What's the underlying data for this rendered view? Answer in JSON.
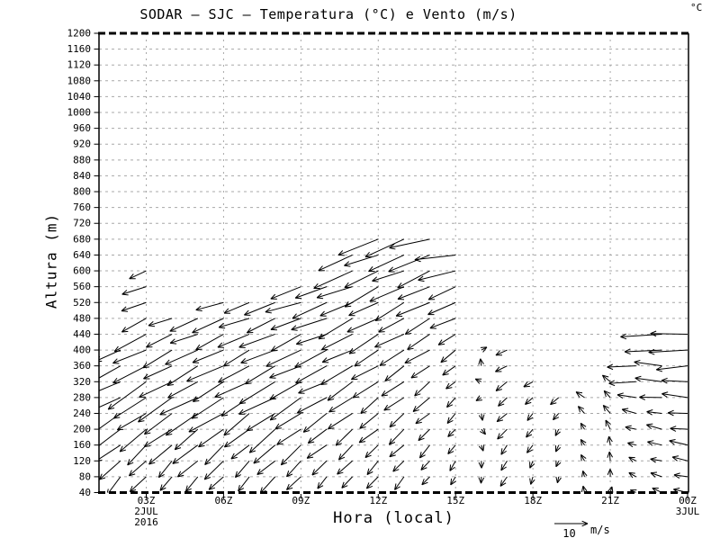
{
  "page": {
    "background": "#ffffff"
  },
  "chart_data": {
    "type": "vector",
    "description": "SODAR time-height wind vector profile plot; wind arrows drawn hourly at 40 m height intervals; no temperature shading visible",
    "title": "SODAR – SJC – Temperatura (°C) e Vento (m/s)",
    "unit_label": "°C",
    "xlabel": "Hora (local)",
    "ylabel": "Altura (m)",
    "colors": {
      "foreground": "#000000",
      "background": "#ffffff",
      "grid": "#a8a8a8"
    },
    "y_axis": {
      "min": 40,
      "max": 1200,
      "step": 40,
      "tick_labels": [
        40,
        80,
        120,
        160,
        200,
        240,
        280,
        320,
        360,
        400,
        440,
        480,
        520,
        560,
        600,
        640,
        680,
        720,
        760,
        800,
        840,
        880,
        920,
        960,
        1000,
        1040,
        1080,
        1120,
        1160,
        1200
      ]
    },
    "x_axis": {
      "ticks": [
        {
          "label": "03Z",
          "hour": 3,
          "sub": [
            "2JUL",
            "2016"
          ]
        },
        {
          "label": "06Z",
          "hour": 6,
          "sub": []
        },
        {
          "label": "09Z",
          "hour": 9,
          "sub": []
        },
        {
          "label": "12Z",
          "hour": 12,
          "sub": []
        },
        {
          "label": "15Z",
          "hour": 15,
          "sub": []
        },
        {
          "label": "18Z",
          "hour": 18,
          "sub": []
        },
        {
          "label": "21Z",
          "hour": 21,
          "sub": []
        },
        {
          "label": "00Z",
          "hour": 24,
          "sub": [
            "3JUL"
          ]
        }
      ]
    },
    "grid": {
      "horizontal_step_m": 40,
      "vertical_step_hours": 3
    },
    "reference_arrow": {
      "value_label": "10",
      "unit_label": "m/s",
      "speed_ms": 10
    },
    "wind_profile_columns": [
      {
        "label": "02Z",
        "hour": 2,
        "top_m": 400,
        "dir_deg": [
          232,
          212,
          202
        ],
        "speed_ms": [
          5,
          12,
          9
        ]
      },
      {
        "label": "03Z",
        "hour": 3,
        "top_m": 600,
        "dir_deg": [
          230,
          210,
          200
        ],
        "speed_ms": [
          5,
          13,
          6
        ]
      },
      {
        "label": "04Z",
        "hour": 4,
        "top_m": 480,
        "dir_deg": [
          233,
          212,
          203
        ],
        "speed_ms": [
          4,
          12,
          8
        ]
      },
      {
        "label": "05Z",
        "hour": 5,
        "top_m": 480,
        "dir_deg": [
          230,
          211,
          202
        ],
        "speed_ms": [
          5,
          12,
          9
        ]
      },
      {
        "label": "06Z",
        "hour": 6,
        "top_m": 520,
        "dir_deg": [
          231,
          210,
          201
        ],
        "speed_ms": [
          5,
          12,
          9
        ]
      },
      {
        "label": "07Z",
        "hour": 7,
        "top_m": 520,
        "dir_deg": [
          232,
          212,
          200
        ],
        "speed_ms": [
          4,
          11,
          9
        ]
      },
      {
        "label": "08Z",
        "hour": 8,
        "top_m": 520,
        "dir_deg": [
          230,
          210,
          200
        ],
        "speed_ms": [
          5,
          12,
          10
        ]
      },
      {
        "label": "09Z",
        "hour": 9,
        "top_m": 560,
        "dir_deg": [
          231,
          209,
          199
        ],
        "speed_ms": [
          5,
          11,
          10
        ]
      },
      {
        "label": "10Z",
        "hour": 10,
        "top_m": 560,
        "dir_deg": [
          230,
          208,
          198
        ],
        "speed_ms": [
          4,
          10,
          11
        ]
      },
      {
        "label": "11Z",
        "hour": 11,
        "top_m": 640,
        "dir_deg": [
          232,
          210,
          200
        ],
        "speed_ms": [
          4,
          10,
          12
        ]
      },
      {
        "label": "12Z",
        "hour": 12,
        "top_m": 680,
        "dir_deg": [
          230,
          212,
          202
        ],
        "speed_ms": [
          4,
          9,
          12
        ]
      },
      {
        "label": "13Z",
        "hour": 13,
        "top_m": 680,
        "dir_deg": [
          231,
          213,
          200
        ],
        "speed_ms": [
          4,
          8,
          12
        ]
      },
      {
        "label": "14Z",
        "hour": 14,
        "top_m": 680,
        "dir_deg": [
          233,
          215,
          198
        ],
        "speed_ms": [
          3,
          7,
          13
        ]
      },
      {
        "label": "15Z",
        "hour": 15,
        "top_m": 640,
        "dir_deg": [
          240,
          220,
          192
        ],
        "speed_ms": [
          3,
          4,
          12
        ]
      },
      {
        "label": "16Z",
        "hour": 16,
        "top_m": 400,
        "dir_deg": [
          250,
          310,
          30
        ],
        "speed_ms": [
          2,
          2,
          2
        ]
      },
      {
        "label": "17Z",
        "hour": 17,
        "top_m": 420,
        "dir_deg": [
          245,
          225,
          205
        ],
        "speed_ms": [
          3,
          4,
          4
        ]
      },
      {
        "label": "18Z",
        "hour": 18,
        "top_m": 320,
        "dir_deg": [
          255,
          235,
          215
        ],
        "speed_ms": [
          2,
          3,
          3
        ]
      },
      {
        "label": "19Z",
        "hour": 19,
        "top_m": 280,
        "dir_deg": [
          265,
          245,
          225
        ],
        "speed_ms": [
          2,
          2,
          3
        ]
      },
      {
        "label": "20Z",
        "hour": 20,
        "top_m": 280,
        "dir_deg": [
          105,
          120,
          140
        ],
        "speed_ms": [
          2,
          2,
          3
        ]
      },
      {
        "label": "21Z",
        "hour": 21,
        "top_m": 320,
        "dir_deg": [
          75,
          110,
          145
        ],
        "speed_ms": [
          2,
          3,
          3
        ]
      },
      {
        "label": "22Z",
        "hour": 22,
        "top_m": 360,
        "dir_deg": [
          150,
          165,
          182
        ],
        "speed_ms": [
          2,
          3,
          9
        ]
      },
      {
        "label": "23Z",
        "hour": 23,
        "top_m": 440,
        "dir_deg": [
          160,
          172,
          180
        ],
        "speed_ms": [
          3,
          5,
          12
        ]
      },
      {
        "label": "00Z",
        "hour": 24,
        "top_m": 440,
        "dir_deg": [
          165,
          175,
          185
        ],
        "speed_ms": [
          4,
          6,
          12
        ]
      }
    ]
  }
}
